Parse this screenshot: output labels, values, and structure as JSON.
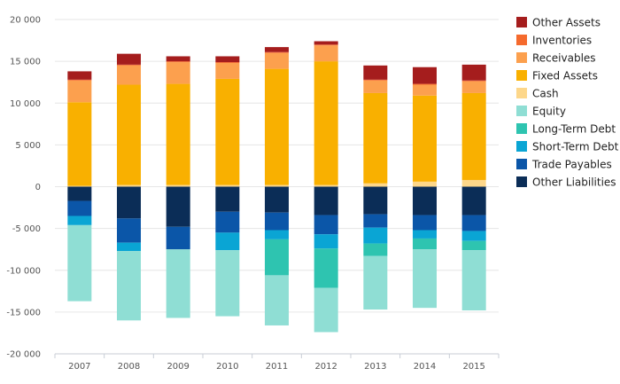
{
  "chart_data": {
    "type": "bar",
    "stacked": true,
    "title": "",
    "xlabel": "",
    "ylabel": "",
    "ylim": [
      -20000,
      20000
    ],
    "y_ticks": [
      20000,
      15000,
      10000,
      5000,
      0,
      -5000,
      -10000,
      -15000,
      -20000
    ],
    "y_tick_labels": [
      "20 000",
      "15 000",
      "10 000",
      "5 000",
      "0",
      "-5 000",
      "-10 000",
      "-15 000",
      "-20 000"
    ],
    "grid": "horizontal",
    "legend_position": "right",
    "categories": [
      "2007",
      "2008",
      "2009",
      "2010",
      "2011",
      "2012",
      "2013",
      "2014",
      "2015"
    ],
    "series": [
      {
        "name": "Other Liabilities",
        "color": "#0b2d57",
        "values": [
          -1700,
          -3800,
          -4800,
          -3000,
          -3100,
          -3400,
          -3300,
          -3400,
          -3400
        ]
      },
      {
        "name": "Trade Payables",
        "color": "#0b56a8",
        "values": [
          -1800,
          -2900,
          -2700,
          -2500,
          -2100,
          -2300,
          -1600,
          -1800,
          -1900
        ]
      },
      {
        "name": "Short-Term Debt",
        "color": "#0aa5d4",
        "values": [
          -1100,
          -1000,
          0,
          -2100,
          -1100,
          -1700,
          -1900,
          -1000,
          -1200
        ]
      },
      {
        "name": "Long-Term Debt",
        "color": "#2ec4b0",
        "values": [
          0,
          0,
          0,
          0,
          -4300,
          -4700,
          -1500,
          -1300,
          -1100
        ]
      },
      {
        "name": "Equity",
        "color": "#8fded4",
        "values": [
          -9100,
          -8300,
          -8200,
          -7900,
          -6000,
          -5300,
          -6400,
          -7000,
          -7200
        ]
      },
      {
        "name": "Cash",
        "color": "#fdd78a",
        "values": [
          100,
          200,
          200,
          200,
          200,
          200,
          400,
          600,
          800
        ]
      },
      {
        "name": "Fixed Assets",
        "color": "#f9b000",
        "values": [
          10000,
          12000,
          12100,
          12700,
          13900,
          14800,
          10800,
          10300,
          10400
        ]
      },
      {
        "name": "Receivables",
        "color": "#fca04e",
        "values": [
          2600,
          2300,
          2600,
          1900,
          1900,
          1900,
          1500,
          1300,
          1400
        ]
      },
      {
        "name": "Inventories",
        "color": "#f56a2d",
        "values": [
          100,
          100,
          100,
          100,
          100,
          100,
          100,
          100,
          100
        ]
      },
      {
        "name": "Other Assets",
        "color": "#a51d1d",
        "values": [
          1000,
          1300,
          600,
          700,
          600,
          400,
          1700,
          2000,
          1900
        ]
      }
    ],
    "legend_order": [
      "Other Assets",
      "Inventories",
      "Receivables",
      "Fixed Assets",
      "Cash",
      "Equity",
      "Long-Term Debt",
      "Short-Term Debt",
      "Trade Payables",
      "Other Liabilities"
    ]
  }
}
